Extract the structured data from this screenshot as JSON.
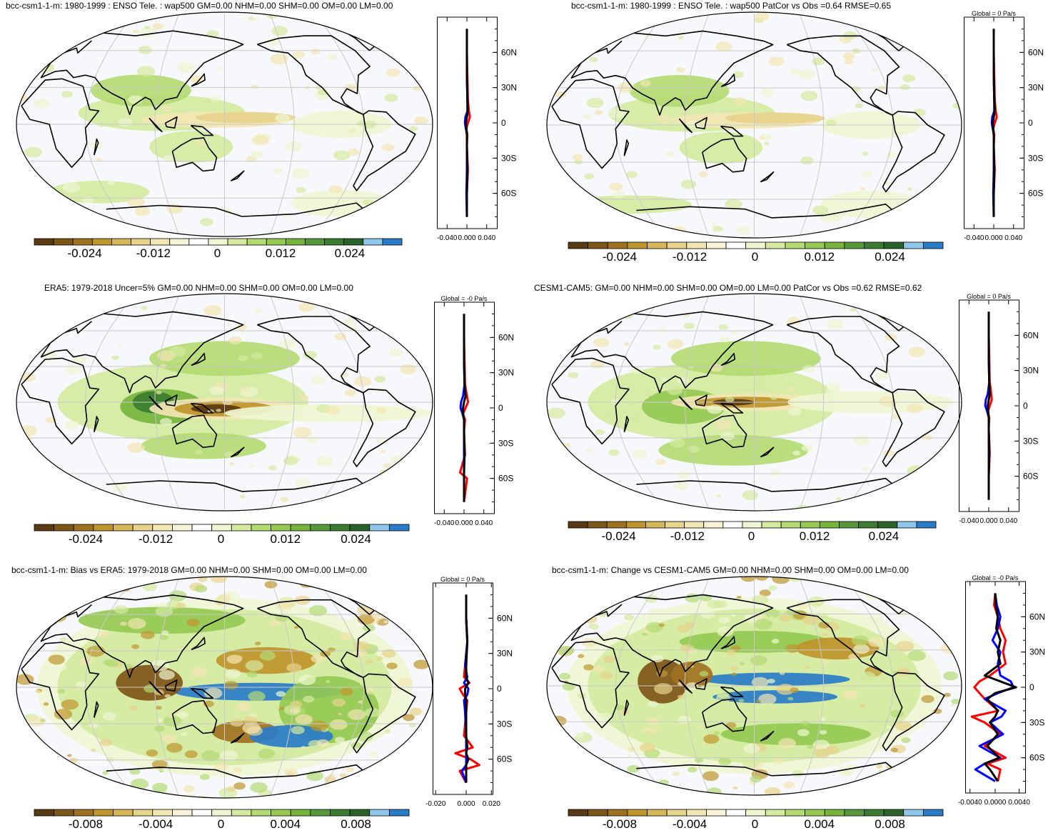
{
  "colors": [
    "#5a3a12",
    "#7e5518",
    "#9f7222",
    "#bf952d",
    "#d6b659",
    "#e7d38c",
    "#f2e6b3",
    "#f8f2d9",
    "#ffffff",
    "#eef6d2",
    "#d4eaa0",
    "#b4da72",
    "#95c952",
    "#77b43e",
    "#56993a",
    "#3b7d30",
    "#28632a",
    "#8ec7ea",
    "#2a7cc8"
  ],
  "panels": [
    {
      "title": "bcc-csm1-1-m: 1980-1999 : ENSO Tele. : wap500 GM=0.00 NHM=0.00 SHM=0.00 OM=0.00 LM=0.00",
      "profile_title": "",
      "lat_labels": [
        "60N",
        "30N",
        "0",
        "30S",
        "60S"
      ],
      "profile_ticks": [
        "-0.040",
        "0.000",
        "0.040"
      ],
      "colorbar_labels": [
        "-0.024",
        "-0.012",
        "0",
        "0.012",
        "0.024"
      ]
    },
    {
      "title": "bcc-csm1-1-m: 1980-1999 : ENSO Tele. : wap500 PatCor vs Obs =0.64 RMSE=0.65",
      "profile_title": "Global = 0 Pa/s",
      "lat_labels": [
        "60N",
        "30N",
        "0",
        "30S",
        "60S"
      ],
      "profile_ticks": [
        "-0.040",
        "0.000",
        "0.040"
      ],
      "colorbar_labels": [
        "-0.024",
        "-0.012",
        "0",
        "0.012",
        "0.024"
      ]
    },
    {
      "title": "ERA5: 1979-2018 Uncer=5% GM=0.00 NHM=0.00 SHM=0.00 OM=0.00 LM=0.00",
      "profile_title": "Global = -0 Pa/s",
      "lat_labels": [
        "60N",
        "30N",
        "0",
        "30S",
        "60S"
      ],
      "profile_ticks": [
        "-0.040",
        "0.000",
        "0.040"
      ],
      "colorbar_labels": [
        "-0.024",
        "-0.012",
        "0",
        "0.012",
        "0.024"
      ]
    },
    {
      "title": "CESM1-CAM5: GM=0.00 NHM=0.00 SHM=0.00 OM=0.00 LM=0.00 PatCor vs Obs =0.62 RMSE=0.62",
      "profile_title": "Global = 0 Pa/s",
      "lat_labels": [
        "60N",
        "30N",
        "0",
        "30S",
        "60S"
      ],
      "profile_ticks": [
        "-0.040",
        "0.000",
        "0.040"
      ],
      "colorbar_labels": [
        "-0.024",
        "-0.012",
        "0",
        "0.012",
        "0.024"
      ]
    },
    {
      "title": "bcc-csm1-1-m: Bias vs ERA5: 1979-2018 GM=0.00 NHM=0.00 SHM=0.00 OM=0.00 LM=0.00",
      "profile_title": "Global = 0 Pa/s",
      "lat_labels": [
        "60N",
        "30N",
        "0",
        "30S",
        "60S"
      ],
      "profile_ticks": [
        "-0.020",
        "0.000",
        "0.020"
      ],
      "colorbar_labels": [
        "-0.008",
        "-0.004",
        "0",
        "0.004",
        "0.008"
      ]
    },
    {
      "title": "bcc-csm1-1-m: Change vs CESM1-CAM5 GM=0.00 NHM=0.00 SHM=0.00 OM=0.00 LM=0.00",
      "profile_title": "Global = -0 Pa/s",
      "lat_labels": [
        "60N",
        "30N",
        "0",
        "30S",
        "60S"
      ],
      "profile_ticks": [
        "-0.0040",
        "0.0000",
        "0.0040"
      ],
      "colorbar_labels": [
        "-0.008",
        "-0.004",
        "0",
        "0.004",
        "0.008"
      ]
    }
  ],
  "chart_data": [
    {
      "type": "heatmap",
      "title": "bcc-csm1-1-m: 1980-1999 : ENSO Tele. : wap500 GM=0.00 NHM=0.00 SHM=0.00 OM=0.00 LM=0.00",
      "ylabel": "",
      "colorbar_ticks": [
        -0.024,
        -0.012,
        0,
        0.012,
        0.024
      ],
      "profile": {
        "xlim": [
          -0.06,
          0.06
        ],
        "lat": [
          80,
          60,
          40,
          20,
          10,
          5,
          0,
          -5,
          -10,
          -20,
          -40,
          -60,
          -80
        ],
        "series": [
          {
            "color": "#ff0000",
            "values": [
              0,
              0,
              0.001,
              0.002,
              0.004,
              0.006,
              0.002,
              -0.001,
              0.001,
              0,
              0.002,
              0,
              0
            ]
          },
          {
            "color": "#0000ff",
            "values": [
              0,
              0,
              0,
              0.001,
              0.001,
              -0.003,
              -0.004,
              -0.002,
              0,
              0,
              0,
              -0.001,
              0
            ]
          },
          {
            "color": "#000000",
            "values": [
              0,
              0,
              0,
              0.001,
              0.002,
              0,
              -0.002,
              -0.001,
              0,
              0,
              0.001,
              0,
              0
            ]
          }
        ]
      }
    },
    {
      "type": "heatmap",
      "title": "bcc-csm1-1-m: 1980-1999 : ENSO Tele. : wap500 PatCor vs Obs =0.64 RMSE=0.65",
      "colorbar_ticks": [
        -0.024,
        -0.012,
        0,
        0.012,
        0.024
      ],
      "profile": {
        "xlim": [
          -0.06,
          0.06
        ],
        "lat": [
          80,
          60,
          40,
          20,
          10,
          5,
          0,
          -5,
          -10,
          -20,
          -40,
          -60,
          -80
        ],
        "series": [
          {
            "color": "#ff0000",
            "values": [
              0,
              0,
              0.001,
              0.002,
              0.004,
              0.006,
              0.002,
              -0.001,
              0.001,
              0,
              0.002,
              0,
              0
            ]
          },
          {
            "color": "#0000ff",
            "values": [
              0,
              0,
              0,
              0.001,
              0.001,
              -0.003,
              -0.004,
              -0.002,
              0,
              0,
              0,
              -0.001,
              0
            ]
          },
          {
            "color": "#000000",
            "values": [
              0,
              0,
              0,
              0.001,
              0.002,
              0,
              -0.002,
              -0.001,
              0,
              0,
              0.001,
              0,
              0
            ]
          }
        ]
      }
    },
    {
      "type": "heatmap",
      "title": "ERA5: 1979-2018 Uncer=5% GM=0.00 NHM=0.00 SHM=0.00 OM=0.00 LM=0.00",
      "colorbar_ticks": [
        -0.024,
        -0.012,
        0,
        0.012,
        0.024
      ],
      "profile": {
        "xlim": [
          -0.06,
          0.06
        ],
        "lat": [
          80,
          60,
          40,
          20,
          10,
          5,
          0,
          -5,
          -10,
          -20,
          -40,
          -55,
          -60,
          -80
        ],
        "series": [
          {
            "color": "#ff0000",
            "values": [
              0,
              0,
              0.001,
              0.002,
              0.006,
              0.008,
              0.003,
              -0.002,
              0.002,
              0,
              0.002,
              -0.008,
              0.006,
              0
            ]
          },
          {
            "color": "#0000ff",
            "values": [
              0,
              0,
              0,
              0.001,
              -0.002,
              -0.006,
              -0.007,
              -0.003,
              0,
              0,
              0,
              0,
              0,
              0
            ]
          },
          {
            "color": "#000000",
            "values": [
              0,
              0,
              0,
              0.001,
              0.003,
              0,
              -0.002,
              -0.002,
              0,
              0,
              0.001,
              0,
              0,
              0
            ]
          }
        ]
      }
    },
    {
      "type": "heatmap",
      "title": "CESM1-CAM5: GM=0.00 NHM=0.00 SHM=0.00 OM=0.00 LM=0.00 PatCor vs Obs =0.62 RMSE=0.62",
      "colorbar_ticks": [
        -0.024,
        -0.012,
        0,
        0.012,
        0.024
      ],
      "profile": {
        "xlim": [
          -0.06,
          0.06
        ],
        "lat": [
          80,
          60,
          40,
          20,
          10,
          5,
          0,
          -5,
          -10,
          -20,
          -40,
          -60,
          -80
        ],
        "series": [
          {
            "color": "#ff0000",
            "values": [
              0,
              0,
              0.001,
              0.002,
              0.005,
              0.006,
              0.002,
              -0.002,
              0.001,
              0,
              0.002,
              0,
              0
            ]
          },
          {
            "color": "#0000ff",
            "values": [
              0,
              0,
              0,
              0.001,
              -0.002,
              -0.006,
              -0.007,
              -0.003,
              0,
              0,
              0,
              0,
              0
            ]
          },
          {
            "color": "#000000",
            "values": [
              0,
              0,
              0,
              0.001,
              0.002,
              0,
              -0.002,
              -0.001,
              0,
              0,
              0.001,
              0,
              0
            ]
          }
        ]
      }
    },
    {
      "type": "heatmap",
      "title": "bcc-csm1-1-m: Bias vs ERA5: 1979-2018 GM=0.00 NHM=0.00 SHM=0.00 OM=0.00 LM=0.00",
      "colorbar_ticks": [
        -0.008,
        -0.004,
        0,
        0.004,
        0.008
      ],
      "profile": {
        "xlim": [
          -0.03,
          0.025
        ],
        "lat": [
          80,
          60,
          40,
          20,
          10,
          5,
          0,
          -5,
          -10,
          -20,
          -40,
          -50,
          -55,
          -60,
          -65,
          -70,
          -80
        ],
        "series": [
          {
            "color": "#ff0000",
            "values": [
              0,
              0,
              0.001,
              -0.001,
              -0.002,
              0.003,
              -0.006,
              -0.003,
              0.001,
              0,
              -0.002,
              0.006,
              -0.01,
              0.004,
              0.012,
              -0.006,
              0
            ]
          },
          {
            "color": "#0000ff",
            "values": [
              0,
              0,
              0.001,
              -0.001,
              0.001,
              -0.002,
              0.002,
              0.001,
              -0.002,
              -0.001,
              0,
              0,
              0,
              0,
              0,
              -0.004,
              0
            ]
          },
          {
            "color": "#000000",
            "values": [
              0,
              0,
              0.001,
              0,
              0,
              0.002,
              -0.001,
              -0.001,
              0,
              0,
              0,
              0.001,
              0,
              0.002,
              0,
              0,
              0
            ]
          }
        ]
      }
    },
    {
      "type": "heatmap",
      "title": "bcc-csm1-1-m: Change vs CESM1-CAM5 GM=0.00 NHM=0.00 SHM=0.00 OM=0.00 LM=0.00",
      "colorbar_ticks": [
        -0.008,
        -0.004,
        0,
        0.004,
        0.008
      ],
      "profile": {
        "xlim": [
          -0.006,
          0.0055
        ],
        "lat": [
          80,
          70,
          60,
          50,
          40,
          30,
          20,
          10,
          5,
          0,
          -5,
          -10,
          -20,
          -25,
          -30,
          -40,
          -50,
          -60,
          -65,
          -70,
          -80
        ],
        "series": [
          {
            "color": "#ff0000",
            "values": [
              0,
              -0.0002,
              0.0005,
              0.001,
              0.002,
              0.0015,
              0.002,
              -0.001,
              -0.003,
              -0.004,
              -0.003,
              -0.002,
              0.0006,
              -0.0045,
              -0.002,
              0.001,
              -0.002,
              0.002,
              -0.0015,
              0.001,
              0.0005
            ]
          },
          {
            "color": "#0000ff",
            "values": [
              0,
              0.0003,
              0.001,
              0.0005,
              -0.0005,
              0.001,
              0.0005,
              0.001,
              0.003,
              0.0035,
              0.0005,
              -0.002,
              0.002,
              0.0012,
              -0.001,
              0.0015,
              -0.003,
              0.001,
              -0.002,
              -0.0038,
              0
            ]
          },
          {
            "color": "#000000",
            "values": [
              0,
              0.0001,
              0.0005,
              0.0002,
              0.001,
              0.0005,
              0.001,
              -0.002,
              0.001,
              0.004,
              0,
              -0.0015,
              0.0005,
              0,
              -0.001,
              0.0005,
              -0.0015,
              0.0008,
              -0.002,
              -0.001,
              0.0005
            ]
          }
        ]
      }
    }
  ]
}
